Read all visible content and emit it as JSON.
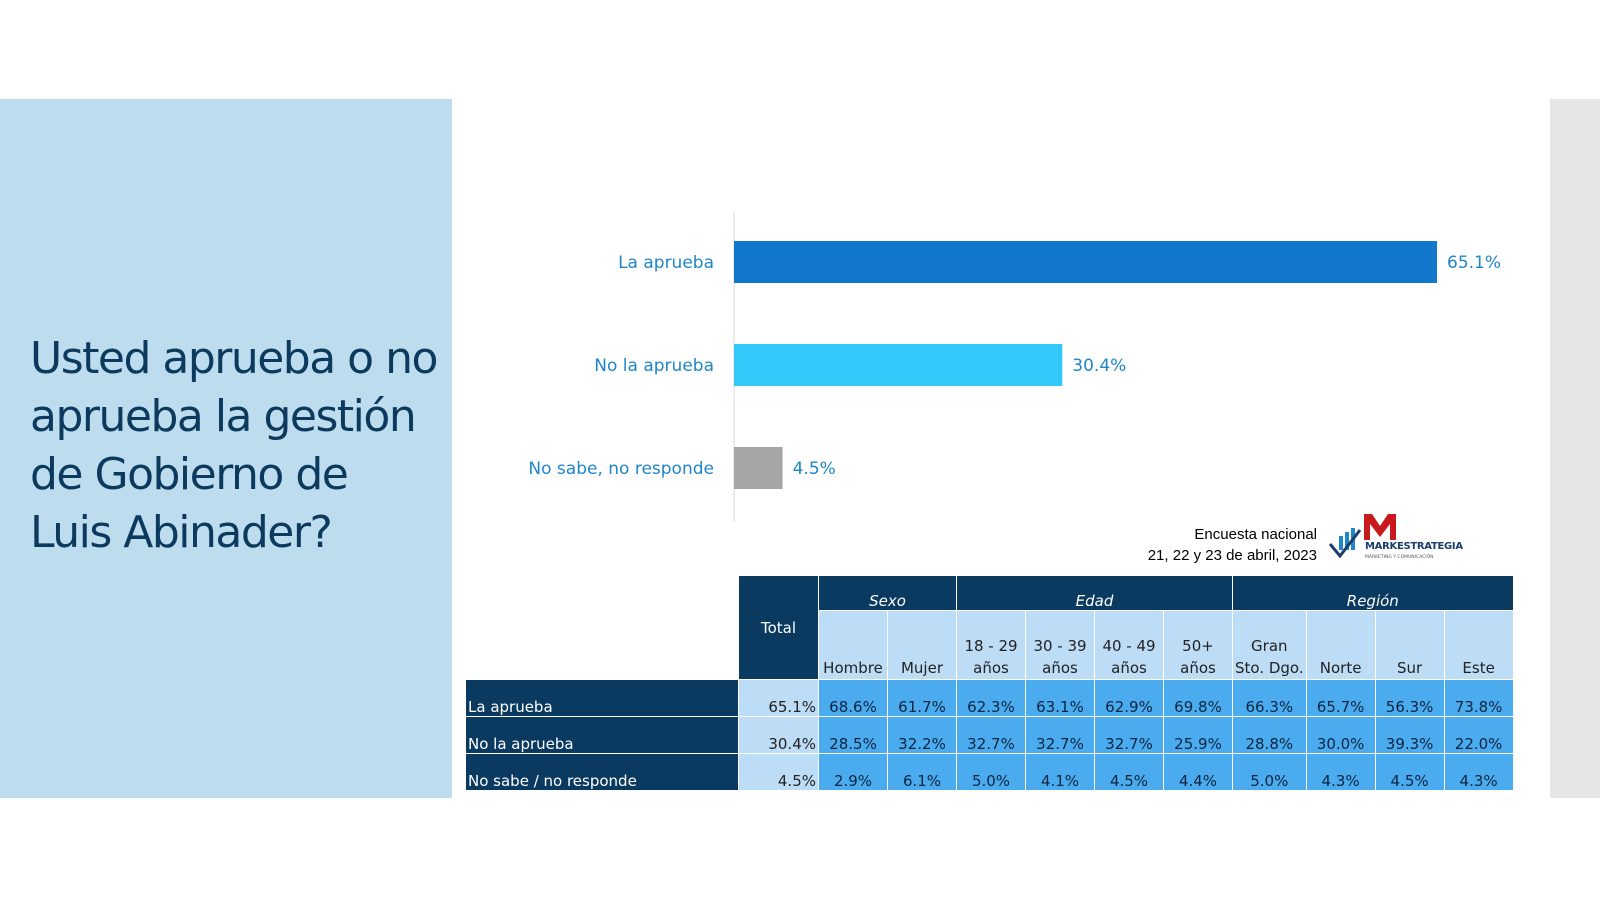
{
  "question": "Usted aprueba o no aprueba la gestión de Gobierno de Luis Abinader?",
  "source": {
    "line1": "Encuesta nacional",
    "line2": "21, 22 y 23 de abril, 2023"
  },
  "logo": {
    "name": "MARKESTRATEGIA",
    "tagline": "MARKETING Y COMUNICACIÓN",
    "icon": "markestrategia-logo"
  },
  "colors": {
    "bar1": "#1178cc",
    "bar2": "#33c7fa",
    "bar3": "#a5a5a5",
    "label": "#1f86c8"
  },
  "chart_data": {
    "type": "bar",
    "orientation": "horizontal",
    "categories": [
      "La aprueba",
      "No la aprueba",
      "No sabe, no responde"
    ],
    "values": [
      65.1,
      30.4,
      4.5
    ],
    "data_labels": [
      "65.1%",
      "30.4%",
      "4.5%"
    ],
    "xlim": [
      0,
      65.1
    ],
    "grid": false
  },
  "table": {
    "total_label": "Total",
    "groups": [
      {
        "label": "Sexo",
        "span": 2
      },
      {
        "label": "Edad",
        "span": 4
      },
      {
        "label": "Región",
        "span": 4
      }
    ],
    "columns": [
      "Hombre",
      "Mujer",
      "18 - 29 años",
      "30 - 39 años",
      "40 - 49 años",
      "50+ años",
      "Gran Sto. Dgo.",
      "Norte",
      "Sur",
      "Este"
    ],
    "rows": [
      {
        "label": "La aprueba",
        "total": "65.1%",
        "values": [
          "68.6%",
          "61.7%",
          "62.3%",
          "63.1%",
          "62.9%",
          "69.8%",
          "66.3%",
          "65.7%",
          "56.3%",
          "73.8%"
        ]
      },
      {
        "label": "No la aprueba",
        "total": "30.4%",
        "values": [
          "28.5%",
          "32.2%",
          "32.7%",
          "32.7%",
          "32.7%",
          "25.9%",
          "28.8%",
          "30.0%",
          "39.3%",
          "22.0%"
        ]
      },
      {
        "label": "No sabe / no responde",
        "total": "4.5%",
        "values": [
          "2.9%",
          "6.1%",
          "5.0%",
          "4.1%",
          "4.5%",
          "4.4%",
          "5.0%",
          "4.3%",
          "4.5%",
          "4.3%"
        ]
      }
    ]
  }
}
